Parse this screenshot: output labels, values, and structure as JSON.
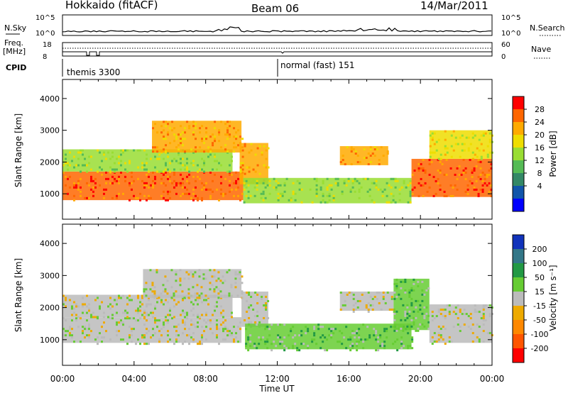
{
  "header": {
    "station": "Hokkaido (fitACF)",
    "beam": "Beam 06",
    "date": "14/Mar/2011"
  },
  "summary_panels": {
    "nsky_label": "N.Sky",
    "nsky_ticks": [
      "10^5",
      "10^0"
    ],
    "nsearch_label": "N.Search",
    "nsearch_ticks": [
      "10^5",
      "10^0"
    ],
    "freq_label_line1": "Freq.",
    "freq_label_line2": "[MHz]",
    "freq_ticks": [
      "18",
      "8"
    ],
    "nave_label": "Nave",
    "nave_ticks": [
      "60",
      "0"
    ],
    "cpid_label": "CPID",
    "cpid_modes": [
      {
        "label": "themis 3300",
        "start_hour": 0
      },
      {
        "label": "normal (fast) 151",
        "start_hour": 12
      }
    ]
  },
  "chart_data": [
    {
      "type": "heatmap",
      "title": "",
      "xlabel": "Time UT",
      "ylabel": "Slant Range [km]",
      "xlim": [
        0,
        24
      ],
      "ylim": [
        200,
        4600
      ],
      "x_ticks": [
        "00:00",
        "04:00",
        "08:00",
        "12:00",
        "16:00",
        "20:00",
        "00:00"
      ],
      "y_ticks": [
        "1000",
        "2000",
        "3000",
        "4000"
      ],
      "colorbar": {
        "label": "Power [dB]",
        "ticks": [
          "28",
          "24",
          "20",
          "16",
          "12",
          "8",
          "4"
        ],
        "colors": [
          "#ff0000",
          "#ff6600",
          "#ffaa00",
          "#eedd00",
          "#99dd33",
          "#55bb55",
          "#338866",
          "#1155aa",
          "#0000ff"
        ]
      },
      "bands": [
        {
          "t0": 0.0,
          "t1": 10.1,
          "r0": 800,
          "r1": 1700,
          "value": 26
        },
        {
          "t0": 0.0,
          "t1": 9.5,
          "r0": 1700,
          "r1": 2400,
          "value": 12
        },
        {
          "t0": 5.0,
          "t1": 10.0,
          "r0": 2300,
          "r1": 3300,
          "value": 20
        },
        {
          "t0": 9.9,
          "t1": 11.5,
          "r0": 1300,
          "r1": 2600,
          "value": 22
        },
        {
          "t0": 10.1,
          "t1": 19.5,
          "r0": 700,
          "r1": 1500,
          "value": 14
        },
        {
          "t0": 15.5,
          "t1": 18.2,
          "r0": 1900,
          "r1": 2500,
          "value": 20
        },
        {
          "t0": 19.5,
          "t1": 24.0,
          "r0": 900,
          "r1": 2100,
          "value": 24
        },
        {
          "t0": 20.5,
          "t1": 24.0,
          "r0": 2100,
          "r1": 3000,
          "value": 18
        }
      ]
    },
    {
      "type": "heatmap",
      "title": "",
      "xlabel": "Time UT",
      "ylabel": "Slant Range [km]",
      "xlim": [
        0,
        24
      ],
      "ylim": [
        200,
        4600
      ],
      "x_ticks": [
        "00:00",
        "04:00",
        "08:00",
        "12:00",
        "16:00",
        "20:00",
        "00:00"
      ],
      "y_ticks": [
        "1000",
        "2000",
        "3000",
        "4000"
      ],
      "colorbar": {
        "label": "Velocity [m s⁻¹]",
        "ticks": [
          "200",
          "100",
          "50",
          "15",
          "-15",
          "-50",
          "-100",
          "-200"
        ],
        "colors": [
          "#1133bb",
          "#337788",
          "#229944",
          "#66cc33",
          "#bbbbbb",
          "#eeaa00",
          "#ff8800",
          "#ff5500",
          "#ff0000"
        ]
      },
      "bands": [
        {
          "t0": 0.0,
          "t1": 10.0,
          "r0": 900,
          "r1": 1700,
          "value": 0
        },
        {
          "t0": 0.0,
          "t1": 9.5,
          "r0": 1700,
          "r1": 2400,
          "value": 5
        },
        {
          "t0": 4.5,
          "t1": 10.0,
          "r0": 2300,
          "r1": 3200,
          "value": 0
        },
        {
          "t0": 10.0,
          "t1": 11.5,
          "r0": 1400,
          "r1": 2500,
          "value": 0
        },
        {
          "t0": 10.2,
          "t1": 19.5,
          "r0": 700,
          "r1": 1500,
          "value": 20
        },
        {
          "t0": 15.5,
          "t1": 18.5,
          "r0": 1900,
          "r1": 2500,
          "value": 0
        },
        {
          "t0": 18.5,
          "t1": 20.5,
          "r0": 1300,
          "r1": 2900,
          "value": 40
        },
        {
          "t0": 20.5,
          "t1": 24.0,
          "r0": 900,
          "r1": 2100,
          "value": 0
        }
      ]
    }
  ]
}
